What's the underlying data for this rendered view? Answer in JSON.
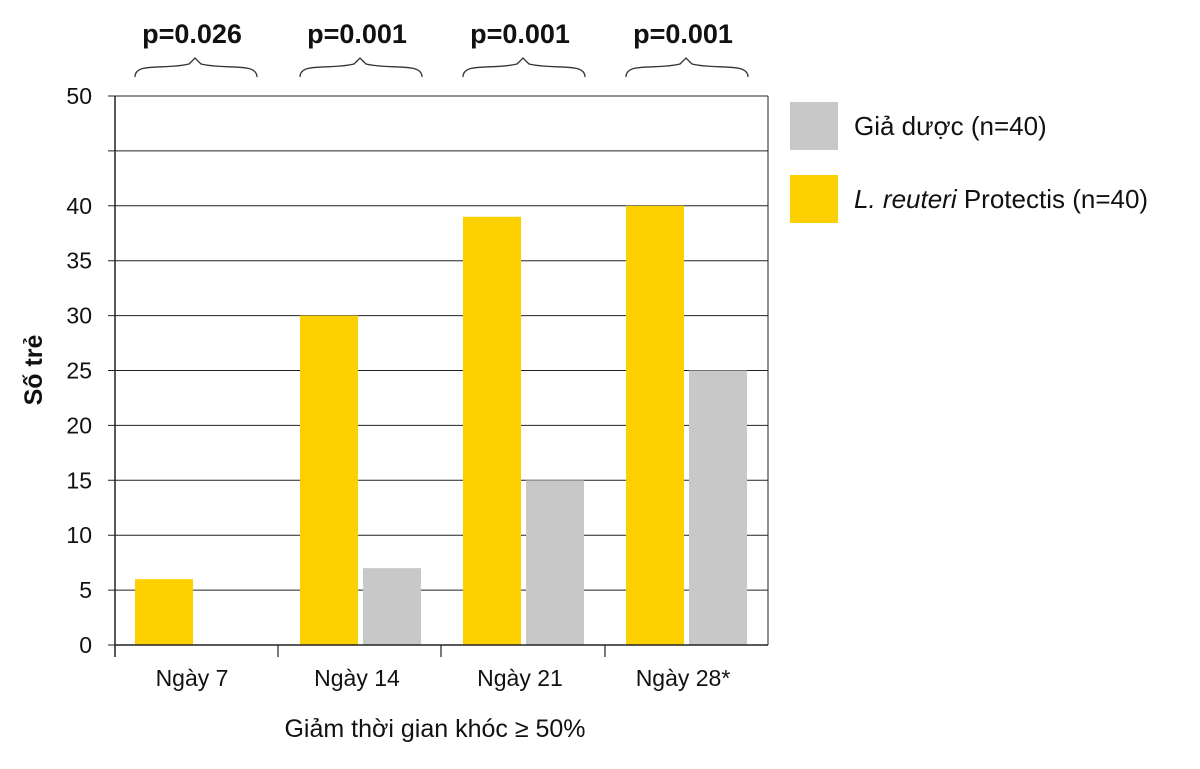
{
  "chart_data": {
    "type": "bar",
    "categories": [
      "Ngày 7",
      "Ngày 14",
      "Ngày 21",
      "Ngày 28*"
    ],
    "series": [
      {
        "name": "L. reuteri Protectis (n=40)",
        "name_italic_part": "L. reuteri",
        "name_rest": " Protectis (n=40)",
        "color": "#FDD000",
        "values": [
          6,
          30,
          39,
          40
        ]
      },
      {
        "name": "Giả dược (n=40)",
        "color": "#C8C8C8",
        "values": [
          0,
          7,
          15,
          25
        ]
      }
    ],
    "ylabel": "Số trẻ",
    "xlabel": "Giảm thời gian khóc ≥ 50%",
    "ylim": [
      0,
      50
    ],
    "yticks": [
      0,
      5,
      10,
      15,
      20,
      25,
      30,
      35,
      40,
      45,
      50
    ],
    "ytick_labels": [
      "0",
      "5",
      "10",
      "15",
      "20",
      "25",
      "30",
      "35",
      "40",
      "",
      "50"
    ],
    "grid": true,
    "legend_position": "right",
    "annotations": [
      "p=0.026",
      "p=0.001",
      "p=0.001",
      "p=0.001"
    ]
  },
  "legend": {
    "placebo_label": "Giả dược (n=40)",
    "lr_italic": "L. reuteri",
    "lr_rest": " Protectis (n=40)"
  }
}
